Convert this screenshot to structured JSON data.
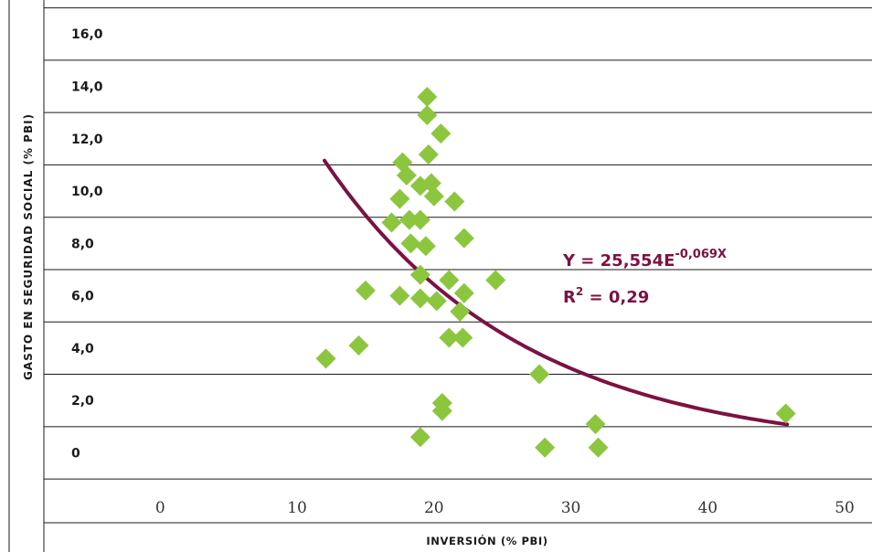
{
  "colors": {
    "points": "#8cc63f",
    "curve": "#7b1241",
    "axis": "#1a1a1a",
    "annotation": "#7b1241"
  },
  "chart_data": {
    "type": "scatter",
    "title": "",
    "xlabel": "INVERSIÓN (% PBI)",
    "ylabel": "GASTO EN SEGURIDAD SOCIAL (% PBI)",
    "xlim": [
      -8.5,
      52
    ],
    "ylim": [
      -1.45,
      17.3
    ],
    "x_ticks": [
      0,
      10,
      20,
      30,
      40,
      50
    ],
    "x_tick_labels": [
      "0",
      "10",
      "20",
      "30",
      "40",
      "50"
    ],
    "y_ticks": [
      0,
      2,
      4,
      6,
      8,
      10,
      12,
      14,
      16
    ],
    "y_tick_labels": [
      "0",
      "2,0",
      "4,0",
      "6,0",
      "8,0",
      "10,0",
      "12,0",
      "14,0",
      "16,0"
    ],
    "grid": "horizontal",
    "series": [
      {
        "name": "",
        "marker": "diamond",
        "points": [
          [
            12.1,
            3.6
          ],
          [
            14.5,
            4.1
          ],
          [
            15.0,
            6.2
          ],
          [
            16.9,
            8.8
          ],
          [
            17.5,
            6.0
          ],
          [
            17.5,
            9.7
          ],
          [
            17.7,
            11.1
          ],
          [
            18.0,
            10.6
          ],
          [
            18.2,
            8.9
          ],
          [
            18.3,
            8.0
          ],
          [
            19.0,
            8.9
          ],
          [
            19.0,
            10.2
          ],
          [
            19.0,
            6.8
          ],
          [
            19.0,
            5.9
          ],
          [
            19.0,
            0.6
          ],
          [
            19.4,
            7.9
          ],
          [
            19.5,
            13.6
          ],
          [
            19.5,
            12.9
          ],
          [
            19.6,
            11.4
          ],
          [
            19.8,
            10.3
          ],
          [
            20.0,
            9.8
          ],
          [
            20.2,
            5.8
          ],
          [
            20.5,
            12.2
          ],
          [
            20.6,
            1.6
          ],
          [
            20.6,
            1.9
          ],
          [
            21.1,
            6.6
          ],
          [
            21.1,
            4.4
          ],
          [
            21.5,
            9.6
          ],
          [
            21.9,
            5.4
          ],
          [
            22.1,
            4.4
          ],
          [
            22.2,
            6.1
          ],
          [
            22.2,
            8.2
          ],
          [
            24.5,
            6.6
          ],
          [
            27.7,
            3.0
          ],
          [
            28.1,
            0.2
          ],
          [
            31.8,
            1.1
          ],
          [
            32.0,
            0.2
          ],
          [
            45.7,
            1.5
          ]
        ]
      }
    ],
    "trendline": {
      "type": "exponential",
      "a": 25.554,
      "b": -0.069,
      "x_range": [
        12,
        45.8
      ]
    },
    "annotations": {
      "equation_prefix": "Y = 25,554E",
      "equation_exponent": "-0,069X",
      "r2_prefix": "R",
      "r2_power": "2",
      "r2_value": " = 0,29"
    }
  }
}
